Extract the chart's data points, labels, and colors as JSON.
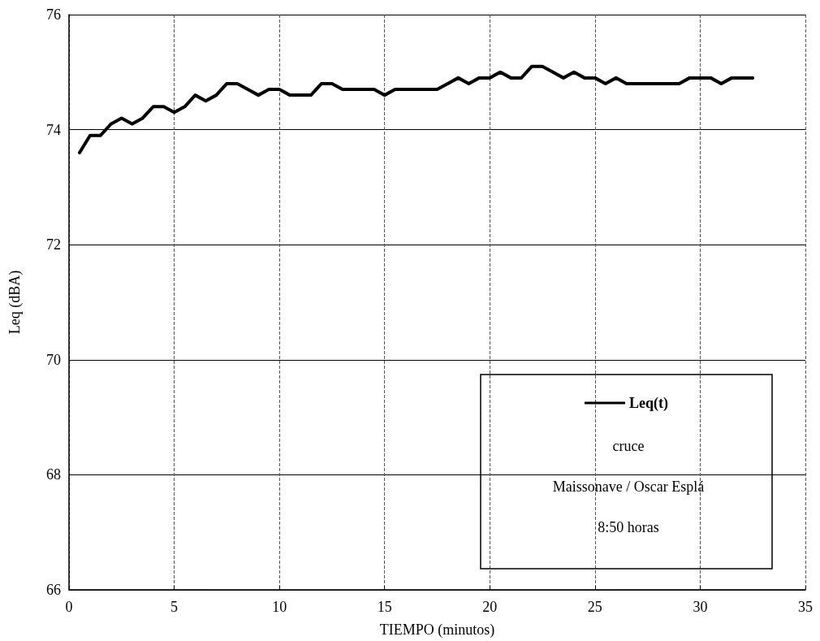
{
  "chart_data": {
    "type": "line",
    "xlabel": "TIEMPO (minutos)",
    "ylabel": "Leq (dBA)",
    "x": [
      0.5,
      1,
      1.5,
      2,
      2.5,
      3,
      3.5,
      4,
      4.5,
      5,
      5.5,
      6,
      6.5,
      7,
      7.5,
      8,
      8.5,
      9,
      9.5,
      10,
      10.5,
      11,
      11.5,
      12,
      12.5,
      13,
      13.5,
      14,
      14.5,
      15,
      15.5,
      16,
      16.5,
      17,
      17.5,
      18,
      18.5,
      19,
      19.5,
      20,
      20.5,
      21,
      21.5,
      22,
      22.5,
      23,
      23.5,
      24,
      24.5,
      25,
      25.5,
      26,
      26.5,
      27,
      27.5,
      28,
      28.5,
      29,
      29.5,
      30,
      30.5,
      31,
      31.5,
      32,
      32.5
    ],
    "series": [
      {
        "name": "Leq(t)",
        "color": "#000000",
        "values": [
          73.6,
          73.9,
          73.9,
          74.1,
          74.2,
          74.1,
          74.2,
          74.4,
          74.4,
          74.3,
          74.4,
          74.6,
          74.5,
          74.6,
          74.8,
          74.8,
          74.7,
          74.6,
          74.7,
          74.7,
          74.6,
          74.6,
          74.6,
          74.8,
          74.8,
          74.7,
          74.7,
          74.7,
          74.7,
          74.6,
          74.7,
          74.7,
          74.7,
          74.7,
          74.7,
          74.8,
          74.9,
          74.8,
          74.9,
          74.9,
          75.0,
          74.9,
          74.9,
          75.1,
          75.1,
          75.0,
          74.9,
          75.0,
          74.9,
          74.9,
          74.8,
          74.9,
          74.8,
          74.8,
          74.8,
          74.8,
          74.8,
          74.8,
          74.9,
          74.9,
          74.9,
          74.8,
          74.9,
          74.9,
          74.9
        ]
      }
    ],
    "xlim": [
      0,
      35
    ],
    "xticks": [
      0,
      5,
      10,
      15,
      20,
      25,
      30,
      35
    ],
    "ylim": [
      66,
      76
    ],
    "yticks": [
      66,
      68,
      70,
      72,
      74,
      76
    ],
    "grid": true,
    "legend": "bottom right",
    "marker": "none",
    "line_style": "solid",
    "annotations": [
      "cruce",
      "Maissonave / Oscar Esplá",
      "8:50 horas"
    ]
  }
}
